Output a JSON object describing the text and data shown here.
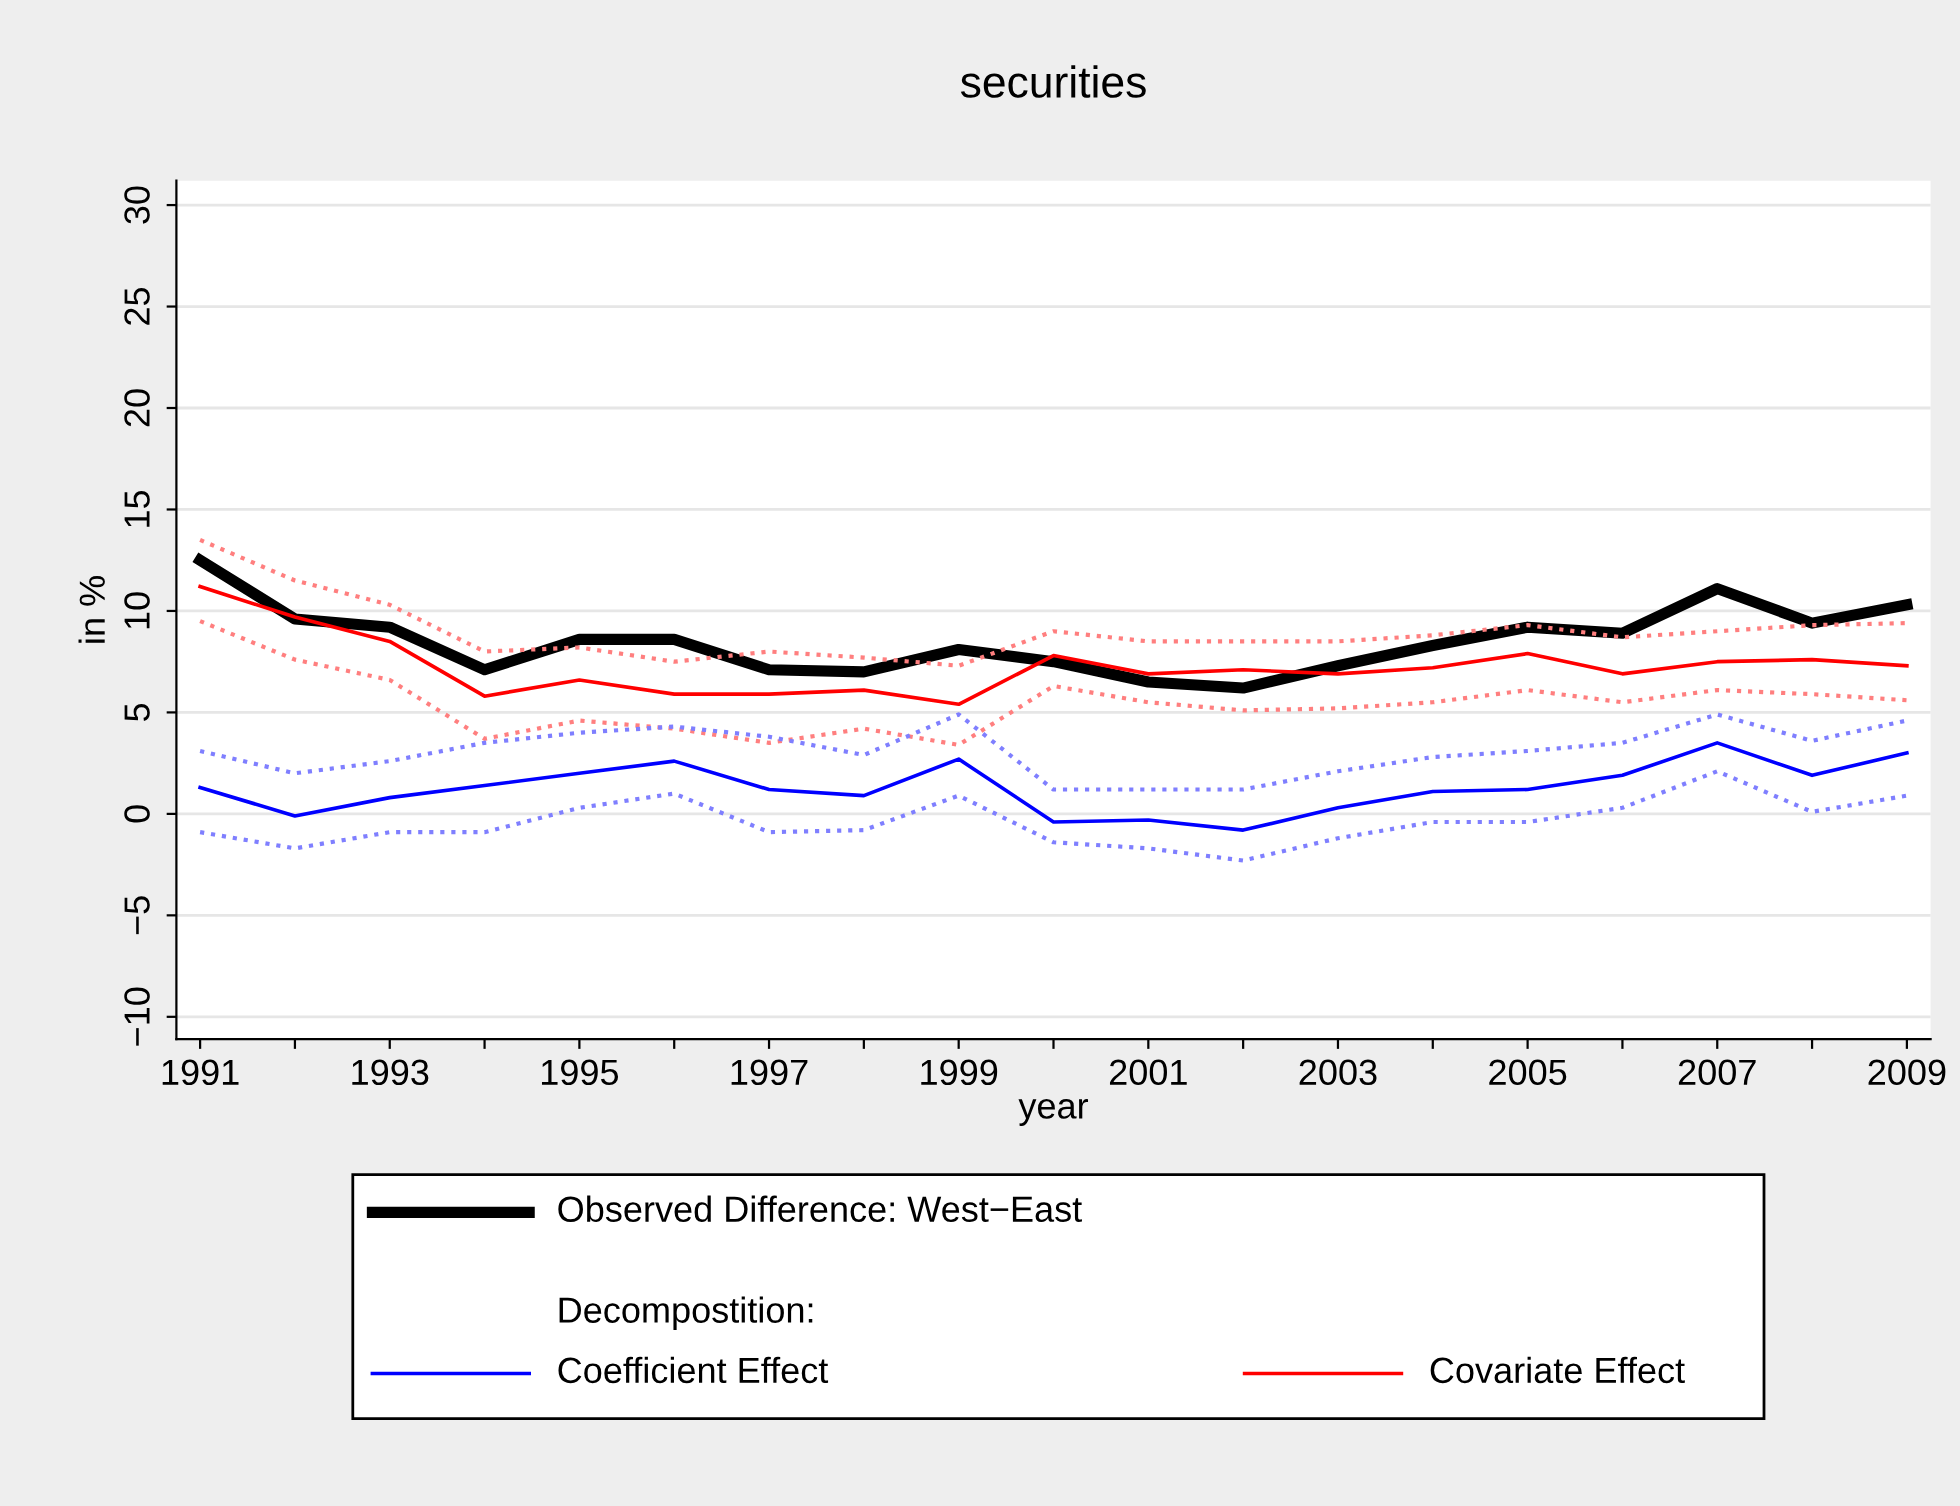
{
  "chart_data": {
    "type": "line",
    "title": "securities",
    "xlabel": "year",
    "ylabel": "in %",
    "x": [
      1991,
      1992,
      1993,
      1994,
      1995,
      1996,
      1997,
      1998,
      1999,
      2000,
      2001,
      2002,
      2003,
      2004,
      2005,
      2006,
      2007,
      2008,
      2009
    ],
    "series": [
      {
        "name": "Observed Difference: West−East",
        "color": "#000000",
        "values": [
          12.5,
          9.6,
          9.2,
          7.1,
          8.6,
          8.6,
          7.1,
          7.0,
          8.1,
          7.5,
          6.5,
          6.2,
          7.3,
          8.3,
          9.2,
          8.9,
          11.1,
          9.4,
          10.3
        ]
      },
      {
        "color": "#ff7f7f",
        "line_style": "dotted",
        "values": [
          13.5,
          11.5,
          10.3,
          8.0,
          8.2,
          7.5,
          8.0,
          7.7,
          7.3,
          9.0,
          8.5,
          8.5,
          8.5,
          8.8,
          9.3,
          8.7,
          9.0,
          9.3,
          9.4
        ]
      },
      {
        "color": "#ff7f7f",
        "line_style": "dotted",
        "values": [
          9.5,
          7.6,
          6.6,
          3.7,
          4.6,
          4.2,
          3.5,
          4.2,
          3.4,
          6.3,
          5.5,
          5.1,
          5.2,
          5.5,
          6.1,
          5.5,
          6.1,
          5.9,
          5.6
        ]
      },
      {
        "color": "#7f7fff",
        "line_style": "dotted",
        "values": [
          3.1,
          2.0,
          2.6,
          3.5,
          4.0,
          4.3,
          3.8,
          2.9,
          4.9,
          1.2,
          1.2,
          1.2,
          2.1,
          2.8,
          3.1,
          3.5,
          4.9,
          3.6,
          4.6
        ]
      },
      {
        "color": "#7f7fff",
        "line_style": "dotted",
        "values": [
          -0.9,
          -1.7,
          -0.9,
          -0.9,
          0.3,
          1.0,
          -0.9,
          -0.8,
          0.9,
          -1.4,
          -1.7,
          -2.3,
          -1.2,
          -0.4,
          -0.4,
          0.3,
          2.1,
          0.1,
          0.9
        ]
      },
      {
        "name": "Coefficient Effect",
        "color": "#0000ff",
        "values": [
          1.3,
          -0.1,
          0.8,
          1.4,
          2.0,
          2.6,
          1.2,
          0.9,
          2.7,
          -0.4,
          -0.3,
          -0.8,
          0.3,
          1.1,
          1.2,
          1.9,
          3.5,
          1.9,
          3.0
        ]
      },
      {
        "name": "Covariate Effect",
        "color": "#ff0000",
        "values": [
          11.2,
          9.7,
          8.5,
          5.8,
          6.6,
          5.9,
          5.9,
          6.1,
          5.4,
          7.8,
          6.9,
          7.1,
          6.9,
          7.2,
          7.9,
          6.9,
          7.5,
          7.6,
          7.3
        ]
      }
    ],
    "annotations": [
      "Decompostition:"
    ],
    "xlim": [
      1990.75,
      2009.25
    ],
    "xticks": [
      1991,
      {
        "value": 1992,
        "label": null
      },
      1993,
      {
        "value": 1994,
        "label": null
      },
      1995,
      {
        "value": 1996,
        "label": null
      },
      1997,
      {
        "value": 1998,
        "label": null
      },
      1999,
      {
        "value": 2000,
        "label": null
      },
      2001,
      {
        "value": 2002,
        "label": null
      },
      2003,
      {
        "value": 2004,
        "label": null
      },
      2005,
      {
        "value": 2006,
        "label": null
      },
      2007,
      {
        "value": 2008,
        "label": null
      },
      2009
    ],
    "ylim": [
      -11.1,
      31.2
    ],
    "yticks": [
      {
        "value": -10,
        "label": "−10"
      },
      {
        "value": -5,
        "label": "−5"
      },
      0,
      5,
      10,
      15,
      20,
      25,
      30
    ],
    "grid": "y",
    "legend": "bottom",
    "line_style": "solid"
  }
}
